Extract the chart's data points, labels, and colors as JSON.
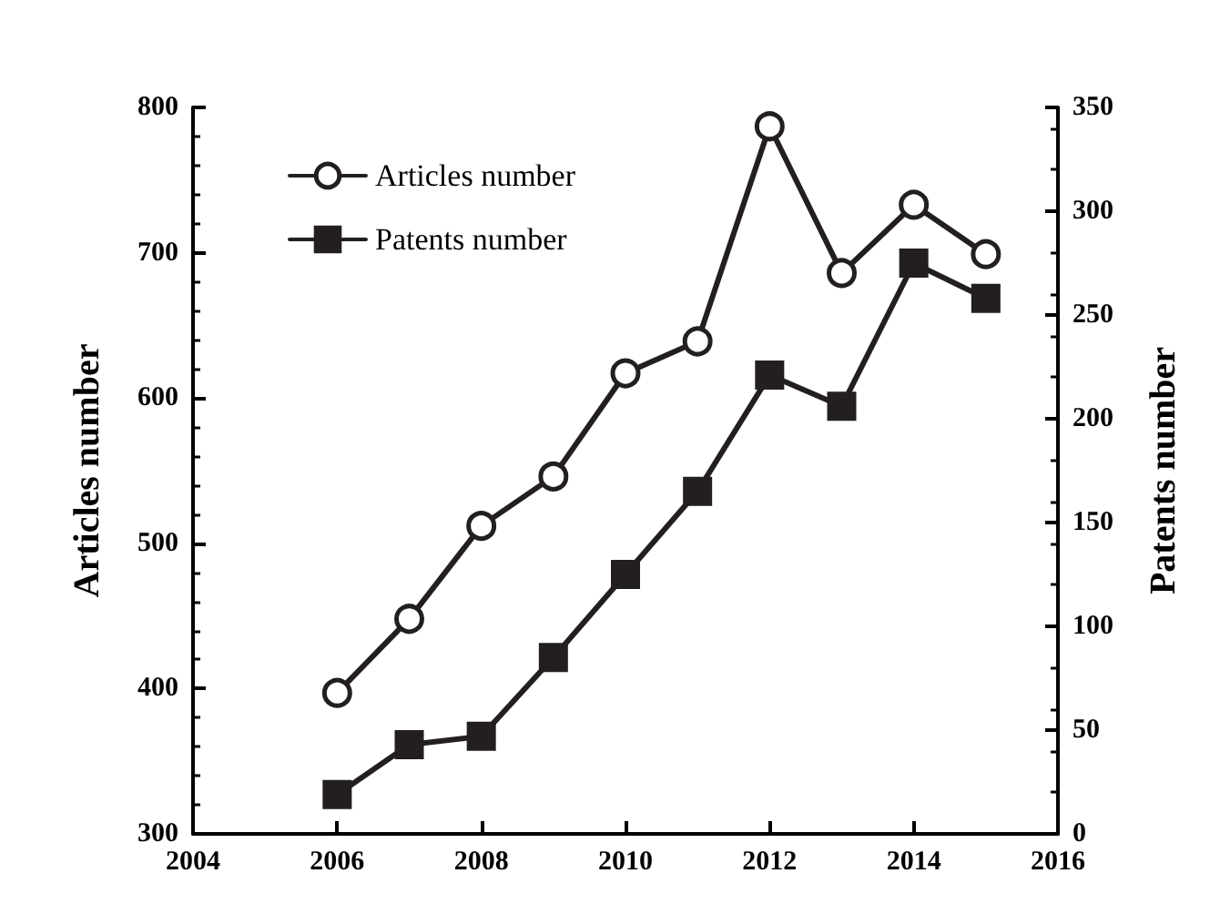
{
  "chart_data": {
    "type": "line",
    "ylabel": "Articles number",
    "y2label": "Patents number",
    "x": [
      2006,
      2007,
      2008,
      2009,
      2010,
      2011,
      2012,
      2013,
      2014,
      2015
    ],
    "xlim": [
      2004,
      2016
    ],
    "xticks": [
      2004,
      2006,
      2008,
      2010,
      2012,
      2014,
      2016
    ],
    "ylim": [
      300,
      800
    ],
    "yticks": [
      300,
      400,
      500,
      600,
      700,
      800
    ],
    "y2lim": [
      0,
      350
    ],
    "y2ticks": [
      0,
      50,
      100,
      150,
      200,
      250,
      300,
      350
    ],
    "legend": "top left",
    "grid": false,
    "line_style": "solid",
    "series": [
      {
        "name": "Articles number",
        "color": "#231f20",
        "marker": "circle",
        "values": [
          397,
          448,
          512,
          546,
          617,
          639,
          787,
          686,
          733,
          699
        ]
      },
      {
        "name": "Patents number",
        "color": "#231f20",
        "marker": "square",
        "axis": "y2",
        "values": [
          19,
          43,
          47,
          85,
          125,
          165,
          221,
          206,
          275,
          258
        ]
      }
    ]
  }
}
